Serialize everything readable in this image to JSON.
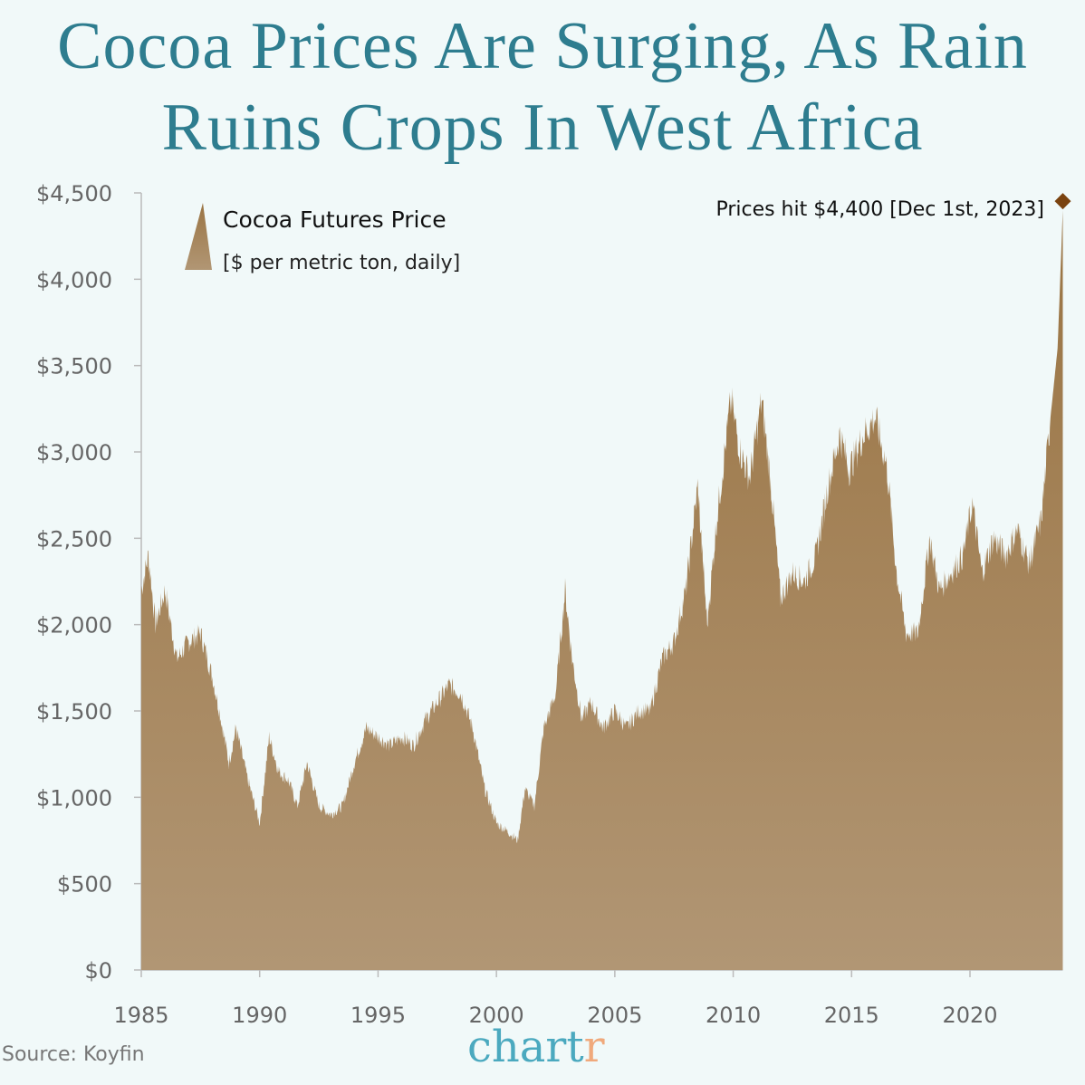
{
  "chart_data": {
    "type": "area",
    "title": "Cocoa Prices Are Surging, As Rain Ruins Crops In West Africa",
    "title_lines": [
      "Cocoa Prices Are Surging, As Rain",
      "Ruins Crops In West Africa"
    ],
    "legend": {
      "title": "Cocoa Futures Price",
      "subtitle": "[$ per metric ton, daily]",
      "placement": "top-left"
    },
    "annotation": {
      "text": "Prices hit $4,400 [Dec 1st, 2023]",
      "year": 2023.92,
      "value": 4400
    },
    "xlim": [
      1985,
      2023.92
    ],
    "ylim": [
      0,
      4500
    ],
    "x_ticks": [
      1985,
      1990,
      1995,
      2000,
      2005,
      2010,
      2015,
      2020
    ],
    "x_tick_labels": [
      "1985",
      "1990",
      "1995",
      "2000",
      "2005",
      "2010",
      "2015",
      "2020"
    ],
    "y_ticks": [
      0,
      500,
      1000,
      1500,
      2000,
      2500,
      3000,
      3500,
      4000,
      4500
    ],
    "y_tick_labels": [
      "$0",
      "$500",
      "$1,000",
      "$1,500",
      "$2,000",
      "$2,500",
      "$3,000",
      "$3,500",
      "$4,000",
      "$4,500"
    ],
    "grid": false,
    "fill_colors": {
      "top": "#9a7443",
      "bottom": "#b19674"
    },
    "marker_color": "#7a4310",
    "x": [
      1985.0,
      1985.3,
      1985.6,
      1986.0,
      1986.5,
      1987.0,
      1987.5,
      1988.0,
      1988.3,
      1988.7,
      1989.0,
      1989.5,
      1990.0,
      1990.4,
      1990.8,
      1991.2,
      1991.6,
      1992.0,
      1992.5,
      1993.0,
      1993.5,
      1994.0,
      1994.5,
      1995.0,
      1995.5,
      1996.0,
      1996.5,
      1997.0,
      1997.5,
      1998.0,
      1998.5,
      1999.0,
      1999.5,
      2000.0,
      2000.5,
      2000.9,
      2001.2,
      2001.6,
      2002.0,
      2002.5,
      2002.9,
      2003.2,
      2003.6,
      2004.0,
      2004.5,
      2005.0,
      2005.5,
      2006.0,
      2006.5,
      2007.0,
      2007.5,
      2008.0,
      2008.5,
      2008.9,
      2009.3,
      2009.9,
      2010.3,
      2010.7,
      2011.2,
      2011.6,
      2012.0,
      2012.5,
      2013.0,
      2013.5,
      2014.0,
      2014.5,
      2014.9,
      2015.5,
      2016.0,
      2016.5,
      2016.9,
      2017.3,
      2017.8,
      2018.3,
      2018.7,
      2019.2,
      2019.7,
      2020.1,
      2020.5,
      2021.0,
      2021.5,
      2022.0,
      2022.5,
      2023.0,
      2023.4,
      2023.7,
      2023.92
    ],
    "values": [
      2200,
      2400,
      2000,
      2200,
      1800,
      1900,
      1950,
      1700,
      1500,
      1200,
      1400,
      1100,
      850,
      1350,
      1150,
      1100,
      950,
      1200,
      950,
      900,
      950,
      1200,
      1400,
      1350,
      1300,
      1350,
      1300,
      1450,
      1550,
      1650,
      1600,
      1400,
      1050,
      850,
      800,
      750,
      1050,
      950,
      1400,
      1600,
      2200,
      1800,
      1450,
      1550,
      1400,
      1500,
      1400,
      1500,
      1500,
      1800,
      1900,
      2200,
      2800,
      2000,
      2600,
      3300,
      3000,
      2850,
      3300,
      2800,
      2150,
      2300,
      2250,
      2400,
      2800,
      3100,
      2900,
      3100,
      3200,
      2900,
      2300,
      1950,
      1950,
      2500,
      2200,
      2300,
      2400,
      2700,
      2300,
      2500,
      2400,
      2550,
      2350,
      2600,
      3200,
      3600,
      4400
    ]
  },
  "footer": {
    "source": "Source: Koyfin",
    "logo": "chartr"
  }
}
